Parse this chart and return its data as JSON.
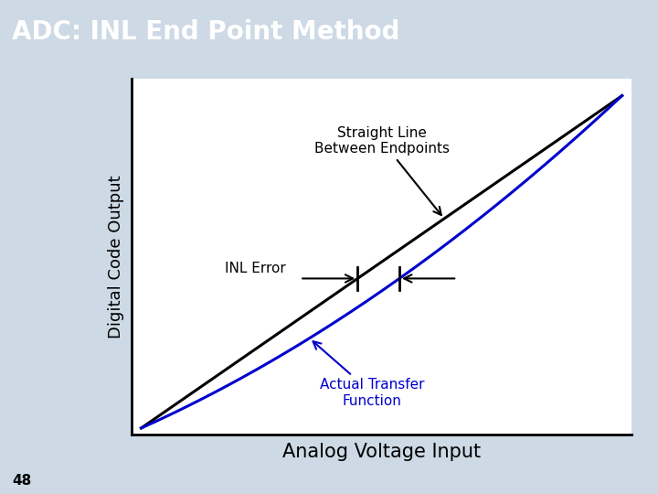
{
  "title": "ADC: INL End Point Method",
  "title_bg_color": "#2B5B84",
  "title_text_color": "#FFFFFF",
  "title_fontsize": 20,
  "xlabel": "Analog Voltage Input",
  "ylabel": "Digital Code Output",
  "xlabel_fontsize": 15,
  "ylabel_fontsize": 13,
  "plot_bg_color": "#FFFFFF",
  "outer_bg_color": "#CDD9E5",
  "straight_line_color": "#000000",
  "actual_line_color": "#0000CC",
  "straight_line_label": "Straight Line\nBetween Endpoints",
  "actual_line_label": "Actual Transfer\nFunction",
  "inl_error_label": "INL Error",
  "page_number": "48",
  "line_width": 2.2,
  "footer_color": "#2B5B84",
  "annotation_fontsize": 11
}
